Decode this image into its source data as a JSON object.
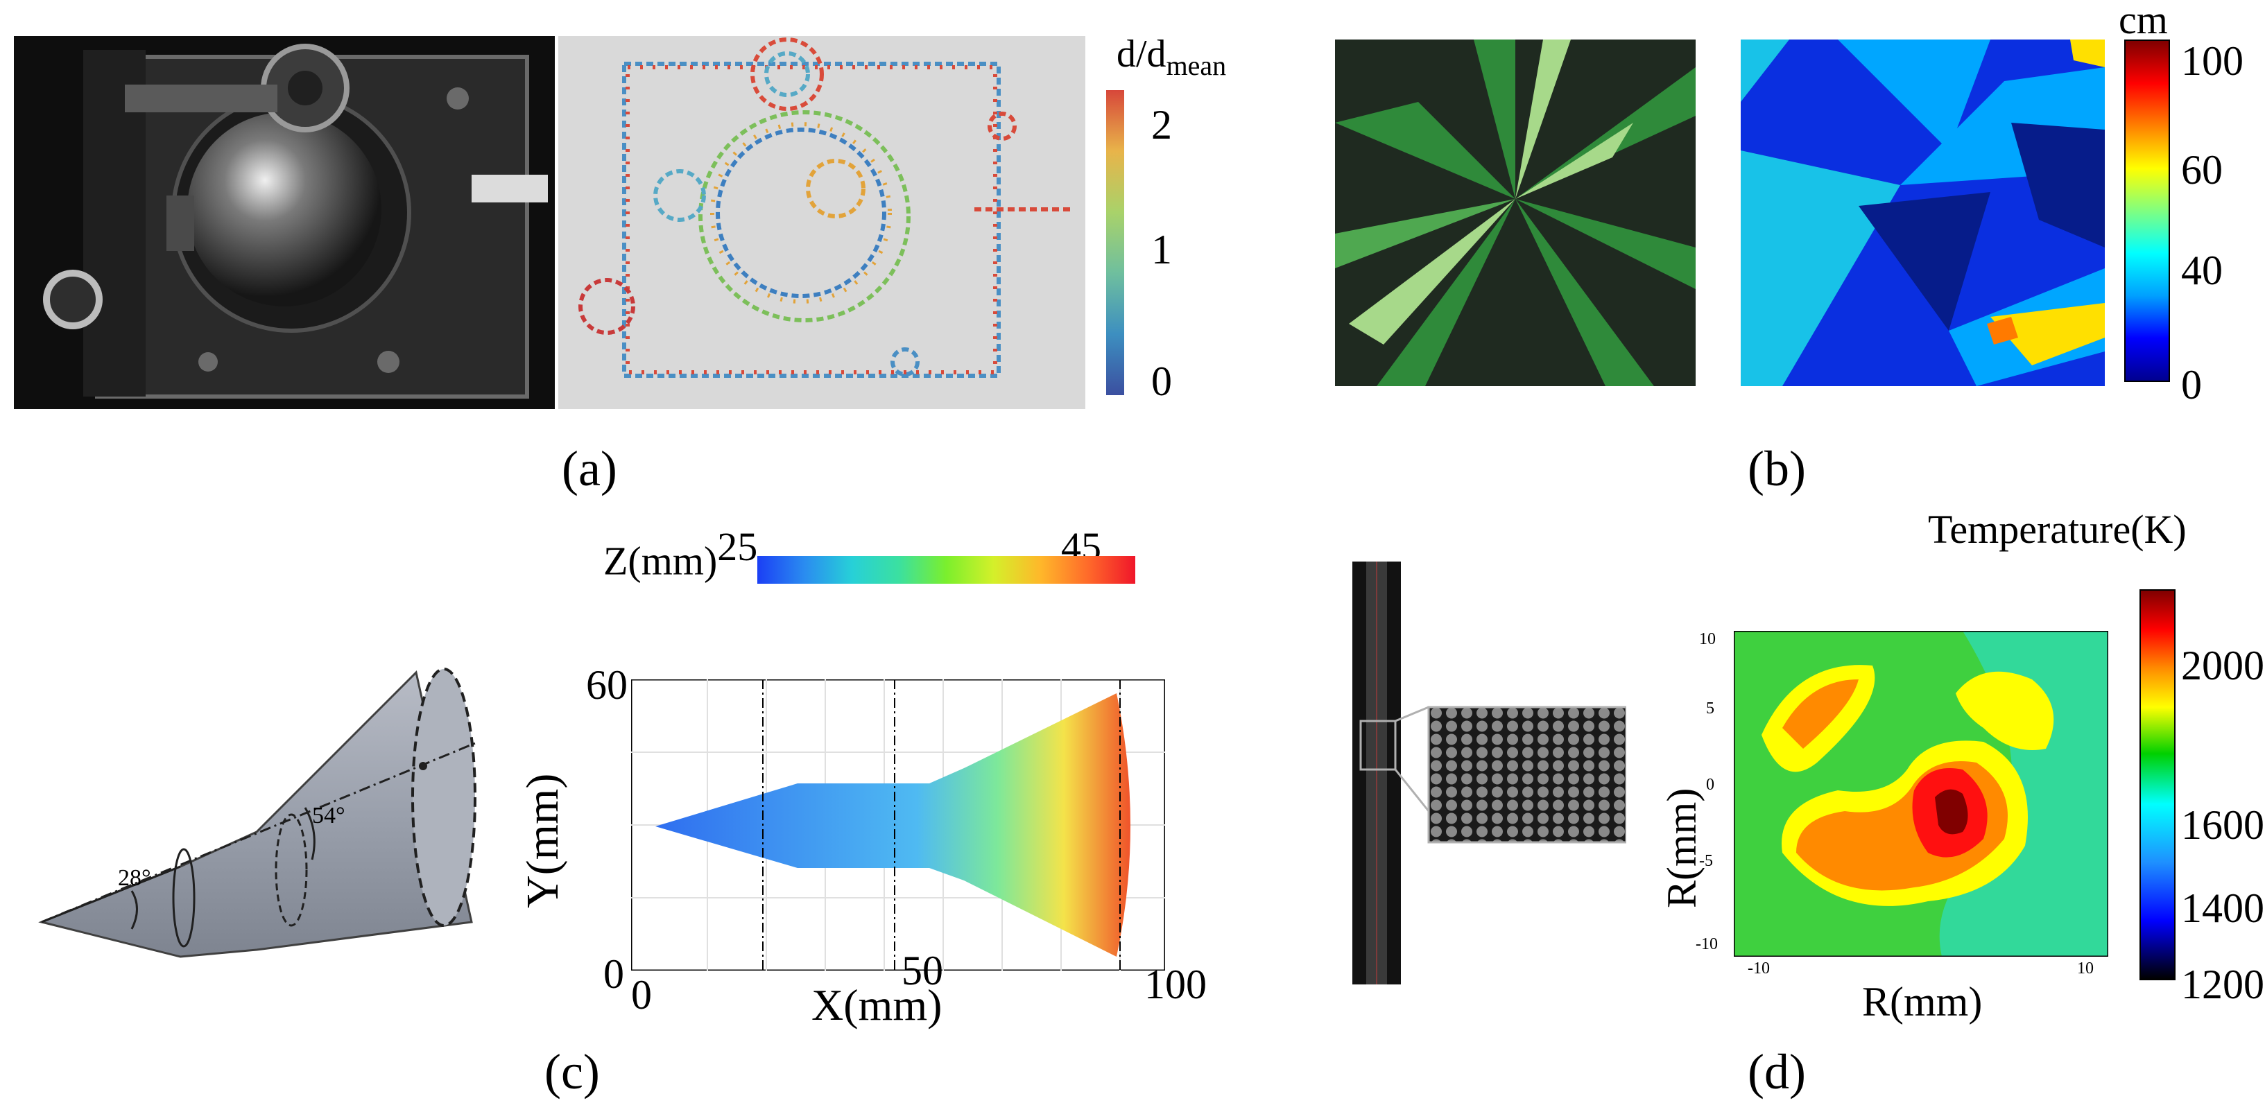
{
  "panels": {
    "a": {
      "caption": "(a)",
      "colorbar_title_main": "d/d",
      "colorbar_title_sub": "mean",
      "ticks": [
        "2",
        "1",
        "0"
      ]
    },
    "b": {
      "caption": "(b)",
      "colorbar_unit": "cm",
      "ticks": [
        "100",
        "60",
        "40",
        "0"
      ]
    },
    "c": {
      "caption": "(c)",
      "angles": [
        "28°",
        "54°"
      ],
      "colorbar_title": "Z(mm)",
      "colorbar_min": "25",
      "colorbar_max": "45",
      "ylabel": "Y(mm)",
      "xlabel": "X(mm)",
      "yticks": [
        "60",
        "0"
      ],
      "xticks": [
        "0",
        "50",
        "100"
      ]
    },
    "d": {
      "caption": "(d)",
      "colorbar_title": "Temperature(K)",
      "ticks": [
        "2000",
        "1600",
        "1400",
        "1200"
      ],
      "ylabel": "R(mm)",
      "xlabel": "R(mm)",
      "yticks": [
        "10",
        "5",
        "0",
        "-5",
        "-10"
      ],
      "xticks": [
        "-10",
        "10"
      ]
    }
  },
  "colors": {
    "jet_start": "#00008f",
    "jet_end": "#800000",
    "photo_dark": "#141414",
    "leaf_green": "#2f8a3a"
  }
}
